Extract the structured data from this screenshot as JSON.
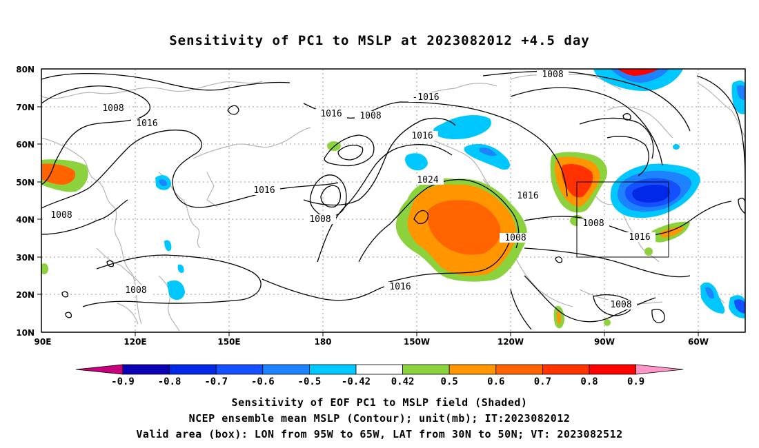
{
  "title": "Sensitivity of PC1 to MSLP at 2023082012 +4.5 day",
  "lat_labels": [
    "80N",
    "70N",
    "60N",
    "50N",
    "40N",
    "30N",
    "20N",
    "10N"
  ],
  "lon_labels": [
    "90E",
    "120E",
    "150E",
    "180",
    "150W",
    "120W",
    "90W",
    "60W"
  ],
  "contour_labels": {
    "c1008_north": "1008",
    "c1016_pacific_north": "-1016",
    "c1008_west": "1008",
    "c1016_west": "1016",
    "c1016_bering": "1016",
    "c1008_bering": "1008",
    "c1016_aleut": "1016",
    "c1016_nw_pacific": "1016",
    "c1024_high": "1024",
    "c1008_aleutian_low": "1008",
    "c1008_asia": "1008",
    "c1016_central": "1016",
    "c1008_tropics": "1008",
    "c1008_mexico": "1008",
    "c1016_na": "1016",
    "c1008_gulf": "1008",
    "c1016_atlantic": "1016",
    "c1008_caribbean": "1008"
  },
  "colorbar": {
    "labels": [
      "-0.9",
      "-0.8",
      "-0.7",
      "-0.6",
      "-0.5",
      "-0.42",
      "0.42",
      "0.5",
      "0.6",
      "0.7",
      "0.8",
      "0.9"
    ],
    "colors": [
      "#c8007d",
      "#0a00b4",
      "#0028e6",
      "#1450ff",
      "#1e82ff",
      "#00c8ff",
      "#ffffff",
      "#8cd23c",
      "#ff9600",
      "#ff6400",
      "#ff3200",
      "#ff0000",
      "#ff96c8"
    ]
  },
  "box": {
    "lon_west": "95W",
    "lon_east": "65W",
    "lat_south": "30N",
    "lat_north": "50N"
  },
  "caption_line1": "Sensitivity of EOF PC1 to MSLP field (Shaded)",
  "caption_line2": "NCEP ensemble mean MSLP (Contour); unit(mb); IT:2023082012",
  "caption_line3": "Valid area (box): LON from 95W to 65W, LAT from 30N to 50N; VT: 2023082512"
}
